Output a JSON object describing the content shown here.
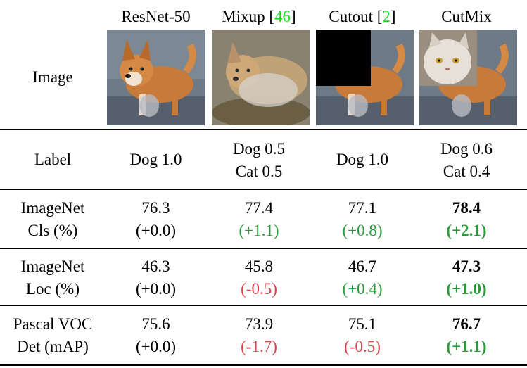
{
  "table": {
    "columns": [
      {
        "name": "ResNet-50",
        "ref": ""
      },
      {
        "name": "Mixup [",
        "ref": "46",
        "close": "]"
      },
      {
        "name": "Cutout [",
        "ref": "2",
        "close": "]"
      },
      {
        "name": "CutMix",
        "ref": ""
      }
    ],
    "rows": {
      "image": {
        "label": "Image"
      },
      "label": {
        "header": "Label",
        "cells": [
          [
            "Dog 1.0"
          ],
          [
            "Dog 0.5",
            "Cat 0.5"
          ],
          [
            "Dog 1.0"
          ],
          [
            "Dog 0.6",
            "Cat 0.4"
          ]
        ]
      },
      "cls": {
        "header": [
          "ImageNet",
          "Cls (%)"
        ],
        "values": [
          "76.3",
          "77.4",
          "77.1",
          "78.4"
        ],
        "deltas": [
          "(+0.0)",
          "(+1.1)",
          "(+0.8)",
          "(+2.1)"
        ],
        "delta_status": [
          "neutral",
          "positive",
          "positive",
          "positive"
        ]
      },
      "loc": {
        "header": [
          "ImageNet",
          "Loc (%)"
        ],
        "values": [
          "46.3",
          "45.8",
          "46.7",
          "47.3"
        ],
        "deltas": [
          "(+0.0)",
          "(-0.5)",
          "(+0.4)",
          "(+1.0)"
        ],
        "delta_status": [
          "neutral",
          "negative",
          "positive",
          "positive"
        ]
      },
      "det": {
        "header": [
          "Pascal VOC",
          "Det (mAP)"
        ],
        "values": [
          "75.6",
          "73.9",
          "75.1",
          "76.7"
        ],
        "deltas": [
          "(+0.0)",
          "(-1.7)",
          "(-0.5)",
          "(+1.1)"
        ],
        "delta_status": [
          "neutral",
          "negative",
          "negative",
          "positive"
        ]
      }
    },
    "best_column": 3,
    "colors": {
      "positive": "#2a9a3a",
      "negative": "#e0404a",
      "ref": "#22dd22"
    }
  }
}
